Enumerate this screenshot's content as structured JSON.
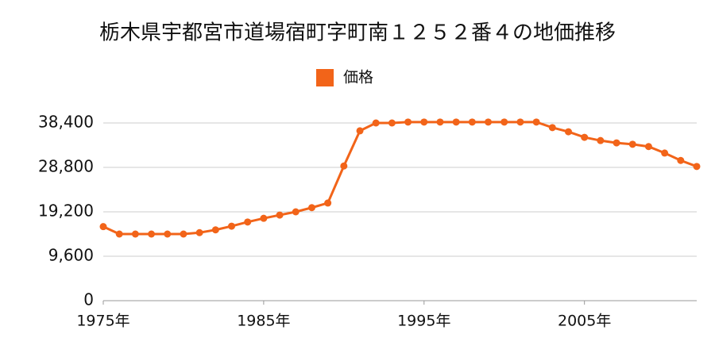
{
  "chart_data": {
    "type": "line",
    "title": "栃木県宇都宮市道場宿町字町南１２５２番４の地価推移",
    "x": [
      1975,
      1976,
      1977,
      1978,
      1979,
      1980,
      1981,
      1982,
      1983,
      1984,
      1985,
      1986,
      1987,
      1988,
      1989,
      1990,
      1991,
      1992,
      1993,
      1994,
      1995,
      1996,
      1997,
      1998,
      1999,
      2000,
      2001,
      2002,
      2003,
      2004,
      2005,
      2006,
      2007,
      2008,
      2009,
      2010,
      2011,
      2012
    ],
    "series": [
      {
        "name": "価格",
        "color": "#f26419",
        "values": [
          16000,
          14400,
          14400,
          14400,
          14400,
          14400,
          14700,
          15300,
          16100,
          17000,
          17800,
          18500,
          19200,
          20100,
          21100,
          29100,
          36700,
          38400,
          38400,
          38600,
          38600,
          38600,
          38600,
          38600,
          38600,
          38600,
          38600,
          38600,
          37400,
          36500,
          35300,
          34600,
          34100,
          33800,
          33300,
          31900,
          30300,
          29000
        ]
      }
    ],
    "xlim": [
      1975,
      2012
    ],
    "xticks": [
      {
        "value": 1975,
        "label": "1975年"
      },
      {
        "value": 1985,
        "label": "1985年"
      },
      {
        "value": 1995,
        "label": "1995年"
      },
      {
        "value": 2005,
        "label": "2005年"
      }
    ],
    "ylim": [
      0,
      38400
    ],
    "yticks": [
      0,
      {
        "value": 9600,
        "label": "9,600"
      },
      {
        "value": 19200,
        "label": "19,200"
      },
      {
        "value": 28800,
        "label": "28,800"
      },
      {
        "value": 38400,
        "label": "38,400"
      }
    ],
    "grid": true
  }
}
